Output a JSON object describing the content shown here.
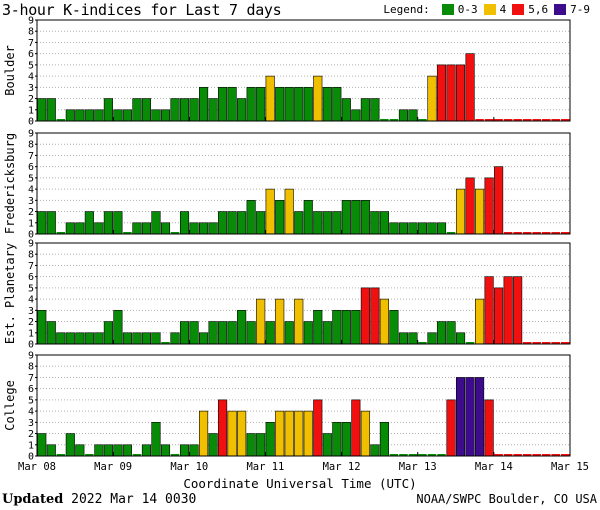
{
  "header": {
    "title": "3-hour K-indices for Last 7 days",
    "legend_label": "Legend:",
    "legend": [
      {
        "label": "0-3",
        "color": "#088c08"
      },
      {
        "label": "4",
        "color": "#f0c000"
      },
      {
        "label": "5,6",
        "color": "#f01010"
      },
      {
        "label": "7-9",
        "color": "#3c0c8c"
      }
    ]
  },
  "footer": {
    "updated_label": "Updated",
    "updated_value": "2022 Mar 14 0030",
    "credit": "NOAA/SWPC Boulder, CO USA"
  },
  "chart_data": {
    "type": "bar",
    "xlabel": "Coordinate Universal Time (UTC)",
    "x_tick_labels": [
      "Mar 08",
      "Mar 09",
      "Mar 10",
      "Mar 11",
      "Mar 12",
      "Mar 13",
      "Mar 14",
      "Mar 15"
    ],
    "y_ticks": [
      "0",
      "1",
      "2",
      "3",
      "4",
      "5",
      "6",
      "7",
      "8",
      "9"
    ],
    "ylim": [
      0,
      9
    ],
    "bins_per_day": 8,
    "color_scale": [
      {
        "max": 3,
        "color": "#088c08"
      },
      {
        "max": 4,
        "color": "#f0c000"
      },
      {
        "max": 6,
        "color": "#f01010"
      },
      {
        "max": 9,
        "color": "#3c0c8c"
      }
    ],
    "panels": [
      {
        "name": "Boulder",
        "values": [
          2,
          2,
          0,
          1,
          1,
          1,
          1,
          2,
          1,
          1,
          2,
          2,
          1,
          1,
          2,
          2,
          2,
          3,
          2,
          3,
          3,
          2,
          3,
          3,
          4,
          3,
          3,
          3,
          3,
          4,
          3,
          3,
          2,
          1,
          2,
          2,
          0,
          0,
          1,
          1,
          0,
          4,
          5,
          5,
          5,
          6
        ]
      },
      {
        "name": "Fredericksburg",
        "values": [
          2,
          2,
          0,
          1,
          1,
          2,
          1,
          2,
          2,
          0,
          1,
          1,
          2,
          1,
          0,
          2,
          1,
          1,
          1,
          2,
          2,
          2,
          3,
          2,
          4,
          3,
          4,
          2,
          3,
          2,
          2,
          2,
          3,
          3,
          3,
          2,
          2,
          1,
          1,
          1,
          1,
          1,
          1,
          0,
          4,
          5,
          4,
          5,
          6
        ]
      },
      {
        "name": "Est. Planetary",
        "values": [
          3,
          2,
          1,
          1,
          1,
          1,
          1,
          2,
          3,
          1,
          1,
          1,
          1,
          0,
          1,
          2,
          2,
          1,
          2,
          2,
          2,
          3,
          2,
          4,
          2,
          4,
          2,
          4,
          2,
          3,
          2,
          3,
          3,
          3,
          5,
          5,
          4,
          3,
          1,
          1,
          0,
          1,
          2,
          2,
          1,
          0,
          4,
          6,
          5,
          6,
          6
        ]
      },
      {
        "name": "College",
        "values": [
          2,
          1,
          0,
          2,
          1,
          0,
          1,
          1,
          1,
          1,
          0,
          1,
          3,
          1,
          0,
          1,
          1,
          4,
          2,
          5,
          4,
          4,
          2,
          2,
          3,
          4,
          4,
          4,
          4,
          5,
          2,
          3,
          3,
          5,
          4,
          1,
          3,
          0,
          0,
          0,
          0,
          0,
          0,
          5,
          7,
          7,
          7,
          5
        ]
      }
    ]
  }
}
